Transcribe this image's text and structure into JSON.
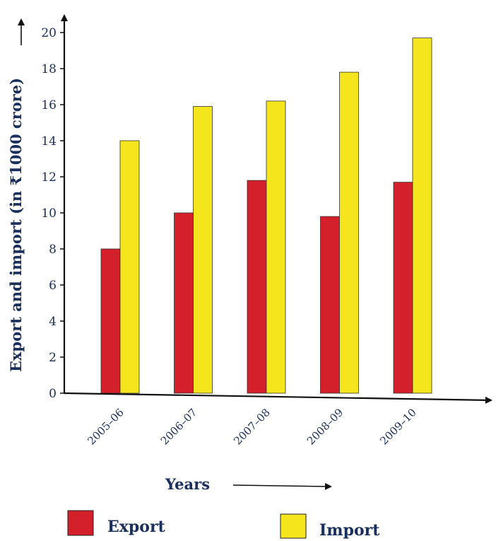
{
  "chart_data": {
    "type": "bar",
    "categories": [
      "2005–06",
      "2006–07",
      "2007–08",
      "2008–09",
      "2009–10"
    ],
    "series": [
      {
        "name": "Export",
        "values": [
          8,
          10,
          11.8,
          9.8,
          11.7
        ],
        "color": "#d3202a"
      },
      {
        "name": "Import",
        "values": [
          14,
          15.9,
          16.2,
          17.8,
          19.7
        ],
        "color": "#f5e51c"
      }
    ],
    "xlabel": "Years",
    "ylabel": "Export and import (in ₹1000 crore)",
    "ylim": [
      0,
      20
    ],
    "yticks": [
      0,
      2,
      4,
      6,
      8,
      10,
      12,
      14,
      16,
      18,
      20
    ],
    "grid": false,
    "legend_position": "bottom"
  }
}
